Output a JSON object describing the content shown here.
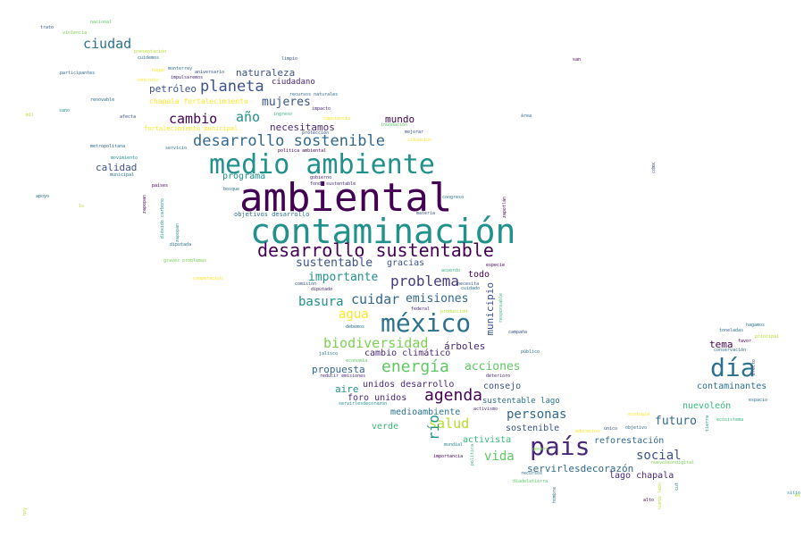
{
  "words": [
    {
      "text": "ambiental",
      "color": "#440154"
    },
    {
      "text": "contaminación",
      "color": "#21918c"
    },
    {
      "text": "medio ambiente",
      "color": "#21918c"
    },
    {
      "text": "desarrollo sustentable",
      "color": "#440154"
    },
    {
      "text": "méxico",
      "color": "#2c728e"
    },
    {
      "text": "país",
      "color": "#482878"
    },
    {
      "text": "día",
      "color": "#2c728e"
    },
    {
      "text": "planeta",
      "color": "#3b528b"
    },
    {
      "text": "desarrollo sostenible",
      "color": "#31688e"
    },
    {
      "text": "energía",
      "color": "#5ec962"
    },
    {
      "text": "agenda",
      "color": "#440154"
    },
    {
      "text": "problema",
      "color": "#443983"
    },
    {
      "text": "ciudad",
      "color": "#2c728e"
    },
    {
      "text": "cambio",
      "color": "#440154"
    },
    {
      "text": "año",
      "color": "#21918c"
    },
    {
      "text": "mujeres",
      "color": "#3b528b"
    },
    {
      "text": "cuidar",
      "color": "#31688e"
    },
    {
      "text": "basura",
      "color": "#21918c"
    },
    {
      "text": "agua",
      "color": "#fde725"
    },
    {
      "text": "biodiversidad",
      "color": "#7ad151"
    },
    {
      "text": "salud",
      "color": "#b5de2b"
    },
    {
      "text": "personas",
      "color": "#31688e"
    },
    {
      "text": "vida",
      "color": "#5ec962"
    },
    {
      "text": "social",
      "color": "#3b528b"
    },
    {
      "text": "río",
      "color": "#21918c"
    },
    {
      "text": "sustentable",
      "color": "#3b528b"
    },
    {
      "text": "importante",
      "color": "#21918c"
    },
    {
      "text": "emisiones",
      "color": "#31688e"
    },
    {
      "text": "acciones",
      "color": "#5ec962"
    },
    {
      "text": "futuro",
      "color": "#31688e"
    },
    {
      "text": "mundo",
      "color": "#440154"
    },
    {
      "text": "naturaleza",
      "color": "#3b528b"
    },
    {
      "text": "petróleo",
      "color": "#3b528b"
    },
    {
      "text": "ciudadano",
      "color": "#482878"
    },
    {
      "text": "necesitamos",
      "color": "#482878"
    },
    {
      "text": "calidad",
      "color": "#3b528b"
    },
    {
      "text": "programa",
      "color": "#21918c"
    },
    {
      "text": "gracias",
      "color": "#3b528b"
    },
    {
      "text": "todo",
      "color": "#440154"
    },
    {
      "text": "municipio",
      "color": "#3b528b"
    },
    {
      "text": "árboles",
      "color": "#482878"
    },
    {
      "text": "cambio climático",
      "color": "#482878"
    },
    {
      "text": "propuesta",
      "color": "#31688e"
    },
    {
      "text": "aire",
      "color": "#21918c"
    },
    {
      "text": "unidos desarrollo",
      "color": "#482878"
    },
    {
      "text": "foro unidos",
      "color": "#482878"
    },
    {
      "text": "consejo",
      "color": "#3b528b"
    },
    {
      "text": "sustentable lago",
      "color": "#2c728e"
    },
    {
      "text": "medioambiente",
      "color": "#2c728e"
    },
    {
      "text": "sostenible",
      "color": "#3b528b"
    },
    {
      "text": "verde",
      "color": "#35b779"
    },
    {
      "text": "activista",
      "color": "#35b779"
    },
    {
      "text": "reforestación",
      "color": "#31688e"
    },
    {
      "text": "servirlesdecorazón",
      "color": "#31688e"
    },
    {
      "text": "lago chapala",
      "color": "#482878"
    },
    {
      "text": "tema",
      "color": "#440154"
    },
    {
      "text": "contaminantes",
      "color": "#2c728e"
    },
    {
      "text": "nuevoleón",
      "color": "#35b779"
    },
    {
      "text": "fortalecimiento municipal",
      "color": "#fde725"
    },
    {
      "text": "chapala fortalecimiento",
      "color": "#fde725"
    },
    {
      "text": "nacional",
      "color": "#5ec962"
    },
    {
      "text": "trato",
      "color": "#3b528b"
    },
    {
      "text": "violencia",
      "color": "#7ad151"
    },
    {
      "text": "presentación",
      "color": "#b5de2b"
    },
    {
      "text": "cuidemos",
      "color": "#2c728e"
    },
    {
      "text": "participantes",
      "color": "#31688e"
    },
    {
      "text": "hogar",
      "color": "#fde725"
    },
    {
      "text": "monterrey",
      "color": "#2c728e"
    },
    {
      "text": "aniversario",
      "color": "#3b528b"
    },
    {
      "text": "concreto",
      "color": "#fde725"
    },
    {
      "text": "impulsaremos",
      "color": "#482878"
    },
    {
      "text": "limpio",
      "color": "#3b528b"
    },
    {
      "text": "san",
      "color": "#440154"
    },
    {
      "text": "renovable",
      "color": "#2c728e"
    },
    {
      "text": "recursos naturales",
      "color": "#31688e"
    },
    {
      "text": "sano",
      "color": "#21918c"
    },
    {
      "text": "afecta",
      "color": "#3b528b"
    },
    {
      "text": "ingreso",
      "color": "#35b779"
    },
    {
      "text": "impacto",
      "color": "#482878"
    },
    {
      "text": "área",
      "color": "#31688e"
    },
    {
      "text": "mil",
      "color": "#b5de2b"
    },
    {
      "text": "capsiancia",
      "color": "#fde725"
    },
    {
      "text": "inundación",
      "color": "#5ec962"
    },
    {
      "text": "protección",
      "color": "#3b528b"
    },
    {
      "text": "mejorar",
      "color": "#3b528b"
    },
    {
      "text": "situación",
      "color": "#fde725"
    },
    {
      "text": "metropolitana",
      "color": "#31688e"
    },
    {
      "text": "servicio",
      "color": "#2c728e"
    },
    {
      "text": "movimiento",
      "color": "#21918c"
    },
    {
      "text": "municipal",
      "color": "#2c728e"
    },
    {
      "text": "política ambiental",
      "color": "#440154"
    },
    {
      "text": "cdmx",
      "color": "#3b528b"
    },
    {
      "text": "gobierno",
      "color": "#482878"
    },
    {
      "text": "fondo sustentable",
      "color": "#482878"
    },
    {
      "text": "países",
      "color": "#440154"
    },
    {
      "text": "bosque",
      "color": "#2c728e"
    },
    {
      "text": "apoyo",
      "color": "#2c728e"
    },
    {
      "text": "congreso",
      "color": "#2c728e"
    },
    {
      "text": "zapopan",
      "color": "#440154"
    },
    {
      "text": "zapotlán",
      "color": "#440154"
    },
    {
      "text": "objetivos desarrollo",
      "color": "#2c728e"
    },
    {
      "text": "materia",
      "color": "#3b528b"
    },
    {
      "text": "lo",
      "color": "#b5de2b"
    },
    {
      "text": "dióxido carbono",
      "color": "#21918c"
    },
    {
      "text": "zapopan",
      "color": "#21918c"
    },
    {
      "text": "diputada",
      "color": "#2c728e"
    },
    {
      "text": "graves problemas",
      "color": "#7ad151"
    },
    {
      "text": "cooperación",
      "color": "#fde725"
    },
    {
      "text": "acuerdo",
      "color": "#35b779"
    },
    {
      "text": "especie",
      "color": "#440154"
    },
    {
      "text": "necesita",
      "color": "#3b528b"
    },
    {
      "text": "comisión",
      "color": "#3b528b"
    },
    {
      "text": "diputado",
      "color": "#482878"
    },
    {
      "text": "cuidado",
      "color": "#2c728e"
    },
    {
      "text": "responsable",
      "color": "#35b779"
    },
    {
      "text": "federal",
      "color": "#482878"
    },
    {
      "text": "producción",
      "color": "#b5de2b"
    },
    {
      "text": "debemos",
      "color": "#2c728e"
    },
    {
      "text": "campaña",
      "color": "#3b528b"
    },
    {
      "text": "jalisco",
      "color": "#2c728e"
    },
    {
      "text": "público",
      "color": "#2c728e"
    },
    {
      "text": "economía",
      "color": "#5ec962"
    },
    {
      "text": "reducir emisiones",
      "color": "#482878"
    },
    {
      "text": "deterioro",
      "color": "#482878"
    },
    {
      "text": "servirlesdecorazón",
      "color": "#21918c"
    },
    {
      "text": "activismo",
      "color": "#482878"
    },
    {
      "text": "mundial",
      "color": "#21918c"
    },
    {
      "text": "importancia",
      "color": "#440154"
    },
    {
      "text": "política",
      "color": "#35b779"
    },
    {
      "text": "ecología",
      "color": "#fde725"
    },
    {
      "text": "educación",
      "color": "#fde725"
    },
    {
      "text": "único",
      "color": "#3b528b"
    },
    {
      "text": "objetivo",
      "color": "#2c728e"
    },
    {
      "text": "recursos",
      "color": "#2c728e"
    },
    {
      "text": "hombre",
      "color": "#2c728e"
    },
    {
      "text": "diadelatierra",
      "color": "#5ec962"
    },
    {
      "text": "género",
      "color": "#7ad151"
    },
    {
      "text": "nuevoleóndigital",
      "color": "#7ad151"
    },
    {
      "text": "hagamos",
      "color": "#2c728e"
    },
    {
      "text": "toneladas",
      "color": "#2c728e"
    },
    {
      "text": "favor",
      "color": "#440154"
    },
    {
      "text": "principal",
      "color": "#b5de2b"
    },
    {
      "text": "conservación",
      "color": "#31688e"
    },
    {
      "text": "efecto",
      "color": "#3b528b"
    },
    {
      "text": "espacio",
      "color": "#2c728e"
    },
    {
      "text": "tierra",
      "color": "#21918c"
    },
    {
      "text": "ecosistema",
      "color": "#35b779"
    },
    {
      "text": "alto",
      "color": "#440154"
    },
    {
      "text": "nuevo león",
      "color": "#b5de2b"
    },
    {
      "text": "hoy",
      "color": "#b5de2b"
    },
    {
      "text": "sitio",
      "color": "#21918c"
    },
    {
      "text": "cut",
      "color": "#2c728e"
    },
    {
      "text": "mx",
      "color": "#b5de2b"
    }
  ]
}
